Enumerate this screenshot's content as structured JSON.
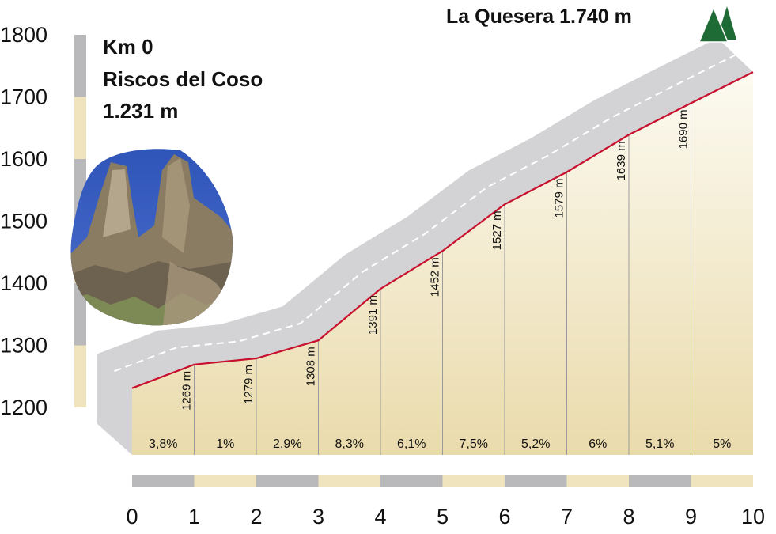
{
  "chart_data": {
    "type": "area",
    "title": "",
    "xlabel": "",
    "ylabel": "",
    "x_ticks": [
      "0",
      "1",
      "2",
      "3",
      "4",
      "5",
      "6",
      "7",
      "8",
      "9",
      "10"
    ],
    "y_ticks": [
      "1200",
      "1300",
      "1400",
      "1500",
      "1600",
      "1700",
      "1800"
    ],
    "xlim": [
      0,
      10
    ],
    "ylim": [
      1200,
      1800
    ],
    "x": [
      0,
      1,
      2,
      3,
      4,
      5,
      6,
      7,
      8,
      9,
      10
    ],
    "elevation": [
      1231,
      1269,
      1279,
      1308,
      1391,
      1452,
      1527,
      1579,
      1639,
      1690,
      1740
    ],
    "elevation_labels": [
      "1269 m",
      "1279 m",
      "1308 m",
      "1391 m",
      "1452 m",
      "1527 m",
      "1579 m",
      "1639 m",
      "1690 m"
    ],
    "gradients": [
      "3,8%",
      "1%",
      "2,9%",
      "8,3%",
      "6,1%",
      "7,5%",
      "5,2%",
      "6%",
      "5,1%",
      "5%"
    ],
    "start_label": [
      "Km 0",
      "Riscos del Coso",
      "1.231 m"
    ],
    "summit_label": "La Quesera 1.740 m",
    "colors": {
      "profile_line": "#c8102e",
      "road_band": "#d3d3d5",
      "fill_top": "#fcfaf1",
      "fill_bottom": "#eadbac",
      "scale_gray": "#b9b9bb",
      "scale_beige": "#efe4be",
      "summit_icon": "#1f6b35"
    },
    "icons": [
      "mountain-peak-icon",
      "rock-formation-photo"
    ]
  }
}
